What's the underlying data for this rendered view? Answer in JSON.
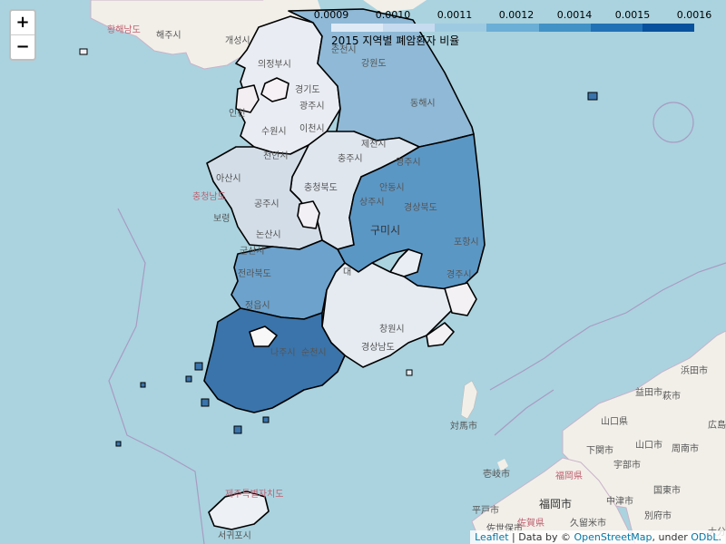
{
  "zoom": {
    "in_label": "+",
    "out_label": "−"
  },
  "legend": {
    "title": "2015 지역별 폐암환자 비율",
    "ticks": [
      "0.0009",
      "0.0010",
      "0.0011",
      "0.0012",
      "0.0014",
      "0.0015",
      "0.0016"
    ],
    "colors": [
      "#deebf7",
      "#c6dbef",
      "#9ecae1",
      "#6baed6",
      "#4292c6",
      "#2171b5",
      "#08519c"
    ]
  },
  "attribution": {
    "leaflet": "Leaflet",
    "sep1": " | Data by © ",
    "osm": "OpenStreetMap",
    "sep2": ", under ",
    "odbl": "ODbL."
  },
  "place_labels": {
    "hwanghae": "황해남도",
    "haeju": "해주시",
    "gaeseong": "개성시",
    "uijeongbu": "의정부시",
    "chuncheon": "춘천시",
    "gangwon": "강원도",
    "gyeonggi": "경기도",
    "incheon": "인천",
    "suwon": "수원시",
    "gwangju_gg": "광주시",
    "icheon": "이천시",
    "donghae": "동해시",
    "jecheon": "제천시",
    "chungju": "충주시",
    "yeongju": "영주시",
    "cheonan": "천안시",
    "chungnam": "충청남도",
    "asan": "아산시",
    "chungbuk": "충청북도",
    "andong": "안동시",
    "gongju": "공주시",
    "sangju": "상주시",
    "gyeongbuk": "경상북도",
    "boryeong": "보령",
    "nonsan": "논산시",
    "gumi": "구미시",
    "pohang": "포항시",
    "daegu": "대",
    "gunsan": "군산시",
    "jeonbuk": "전라북도",
    "gyeongju": "경주시",
    "jeongeup": "정읍시",
    "changwon": "창원시",
    "gyeongnam": "경상남도",
    "naju": "나주시",
    "suncheon": "순천시",
    "tsushima": "対馬市",
    "yamaguchi": "山口県",
    "hagi": "萩市",
    "yamaguchi_city": "山口市",
    "shimonoseki": "下関市",
    "ube": "宇部市",
    "shunan": "周南市",
    "hamada": "浜田市",
    "masuda": "益田市",
    "hiroshima": "広島",
    "fukuoka_pref": "福岡県",
    "fukuoka": "福岡市",
    "iki": "壱岐市",
    "nakatsu": "中津市",
    "kunisaki": "国東市",
    "beppu": "別府市",
    "oita": "大分",
    "hirado": "平戸市",
    "saga": "佐賀県",
    "kurume": "久留米市",
    "sasebo": "佐世保市",
    "jeju": "제주특별자치도",
    "seogwipo": "서귀포시"
  }
}
